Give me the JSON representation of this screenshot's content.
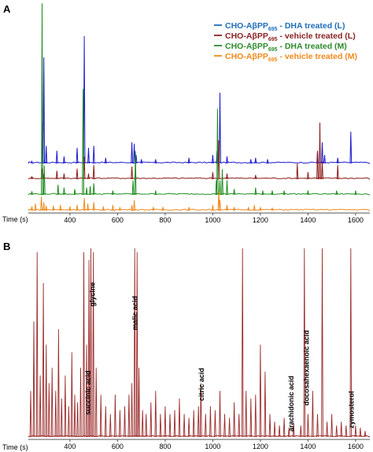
{
  "chart_data": [
    {
      "type": "line",
      "panel_label": "A",
      "xlabel": "Time (s)",
      "xlim": [
        225,
        1660
      ],
      "xticks": [
        400,
        600,
        800,
        1000,
        1200,
        1400,
        1600
      ],
      "legend_position": "top-right",
      "legend": [
        {
          "prefix": "CHO-AβPP",
          "subscript": "695",
          "suffix": " - DHA treated (L)",
          "color": "#1f6fb8"
        },
        {
          "prefix": "CHO-AβPP",
          "subscript": "695",
          "suffix": " - vehicle treated (L)",
          "color": "#8b2323"
        },
        {
          "prefix": "CHO-AβPP",
          "subscript": "695",
          "suffix": " - DHA treated (M)",
          "color": "#2e8b2e"
        },
        {
          "prefix": "CHO-AβPP",
          "subscript": "695",
          "suffix": " - vehicle treated (M)",
          "color": "#f08a1c"
        }
      ],
      "series": [
        {
          "color": "#1a1acc",
          "peaks": [
            [
              240,
              3
            ],
            [
              285,
              58
            ],
            [
              290,
              150
            ],
            [
              300,
              25
            ],
            [
              345,
              18
            ],
            [
              375,
              10
            ],
            [
              430,
              22
            ],
            [
              460,
              180
            ],
            [
              478,
              22
            ],
            [
              500,
              25
            ],
            [
              550,
              8
            ],
            [
              660,
              30
            ],
            [
              670,
              28
            ],
            [
              678,
              12
            ],
            [
              700,
              6
            ],
            [
              760,
              6
            ],
            [
              900,
              8
            ],
            [
              1000,
              12
            ],
            [
              1018,
              18
            ],
            [
              1030,
              100
            ],
            [
              1060,
              10
            ],
            [
              1160,
              6
            ],
            [
              1180,
              8
            ],
            [
              1230,
              6
            ],
            [
              1440,
              18
            ],
            [
              1460,
              30
            ],
            [
              1470,
              12
            ],
            [
              1525,
              8
            ],
            [
              1580,
              45
            ]
          ]
        },
        {
          "color": "#8b1a1a",
          "peaks": [
            [
              240,
              4
            ],
            [
              283,
              15
            ],
            [
              290,
              8
            ],
            [
              345,
              12
            ],
            [
              375,
              8
            ],
            [
              430,
              15
            ],
            [
              460,
              32
            ],
            [
              478,
              8
            ],
            [
              500,
              20
            ],
            [
              660,
              18
            ],
            [
              675,
              10
            ],
            [
              1000,
              10
            ],
            [
              1025,
              55
            ],
            [
              1060,
              8
            ],
            [
              1180,
              6
            ],
            [
              1355,
              22
            ],
            [
              1400,
              10
            ],
            [
              1440,
              40
            ],
            [
              1450,
              80
            ],
            [
              1460,
              25
            ],
            [
              1525,
              20
            ]
          ]
        },
        {
          "color": "#1e8c1e",
          "peaks": [
            [
              240,
              5
            ],
            [
              283,
              262
            ],
            [
              292,
              40
            ],
            [
              350,
              14
            ],
            [
              375,
              10
            ],
            [
              420,
              8
            ],
            [
              455,
              145
            ],
            [
              470,
              10
            ],
            [
              485,
              12
            ],
            [
              500,
              16
            ],
            [
              580,
              6
            ],
            [
              665,
              20
            ],
            [
              675,
              60
            ],
            [
              760,
              6
            ],
            [
              1015,
              20
            ],
            [
              1020,
              118
            ],
            [
              1030,
              20
            ],
            [
              1040,
              35
            ],
            [
              1060,
              20
            ],
            [
              1090,
              8
            ],
            [
              1180,
              10
            ],
            [
              1210,
              6
            ],
            [
              1250,
              6
            ],
            [
              1300,
              6
            ],
            [
              1400,
              6
            ],
            [
              1520,
              6
            ],
            [
              1600,
              6
            ]
          ]
        },
        {
          "color": "#f08a1c",
          "peaks": [
            [
              240,
              6
            ],
            [
              255,
              10
            ],
            [
              280,
              20
            ],
            [
              290,
              12
            ],
            [
              300,
              7
            ],
            [
              330,
              7
            ],
            [
              360,
              8
            ],
            [
              400,
              6
            ],
            [
              430,
              8
            ],
            [
              460,
              18
            ],
            [
              475,
              10
            ],
            [
              500,
              12
            ],
            [
              540,
              6
            ],
            [
              580,
              8
            ],
            [
              610,
              5
            ],
            [
              660,
              8
            ],
            [
              670,
              15
            ],
            [
              750,
              5
            ],
            [
              790,
              5
            ],
            [
              900,
              5
            ],
            [
              1000,
              8
            ],
            [
              1025,
              28
            ],
            [
              1030,
              15
            ],
            [
              1060,
              8
            ],
            [
              1090,
              5
            ],
            [
              1150,
              5
            ],
            [
              1175,
              8
            ],
            [
              1200,
              5
            ],
            [
              1250,
              4
            ]
          ]
        }
      ]
    },
    {
      "type": "line",
      "panel_label": "B",
      "xlabel": "Time (s)",
      "xlim": [
        225,
        1660
      ],
      "xticks": [
        400,
        600,
        800,
        1000,
        1200,
        1400,
        1600
      ],
      "series": [
        {
          "color": "#9b2a2a",
          "peaks": [
            [
              235,
              60
            ],
            [
              248,
              150
            ],
            [
              262,
              240
            ],
            [
              275,
              80
            ],
            [
              288,
              200
            ],
            [
              300,
              120
            ],
            [
              312,
              70
            ],
            [
              325,
              90
            ],
            [
              340,
              60
            ],
            [
              352,
              140
            ],
            [
              365,
              50
            ],
            [
              380,
              80
            ],
            [
              395,
              40
            ],
            [
              408,
              110
            ],
            [
              420,
              55
            ],
            [
              432,
              45
            ],
            [
              445,
              90
            ],
            [
              458,
              240
            ],
            [
              470,
              120
            ],
            [
              480,
              230
            ],
            [
              488,
              245
            ],
            [
              498,
              240
            ],
            [
              510,
              90
            ],
            [
              530,
              55
            ],
            [
              550,
              40
            ],
            [
              570,
              30
            ],
            [
              590,
              55
            ],
            [
              610,
              35
            ],
            [
              630,
              40
            ],
            [
              648,
              55
            ],
            [
              660,
              70
            ],
            [
              672,
              245
            ],
            [
              682,
              240
            ],
            [
              690,
              90
            ],
            [
              705,
              35
            ],
            [
              720,
              30
            ],
            [
              740,
              45
            ],
            [
              760,
              60
            ],
            [
              780,
              30
            ],
            [
              800,
              40
            ],
            [
              820,
              30
            ],
            [
              840,
              35
            ],
            [
              860,
              50
            ],
            [
              880,
              30
            ],
            [
              900,
              25
            ],
            [
              920,
              35
            ],
            [
              940,
              40
            ],
            [
              950,
              70
            ],
            [
              970,
              30
            ],
            [
              990,
              40
            ],
            [
              1010,
              35
            ],
            [
              1030,
              60
            ],
            [
              1050,
              30
            ],
            [
              1070,
              25
            ],
            [
              1090,
              45
            ],
            [
              1110,
              30
            ],
            [
              1125,
              245
            ],
            [
              1140,
              60
            ],
            [
              1160,
              50
            ],
            [
              1180,
              55
            ],
            [
              1200,
              120
            ],
            [
              1220,
              85
            ],
            [
              1240,
              30
            ],
            [
              1260,
              20
            ],
            [
              1280,
              15
            ],
            [
              1300,
              25
            ],
            [
              1320,
              12
            ],
            [
              1340,
              18
            ],
            [
              1370,
              15
            ],
            [
              1385,
              245
            ],
            [
              1400,
              30
            ],
            [
              1420,
              60
            ],
            [
              1440,
              30
            ],
            [
              1460,
              245
            ],
            [
              1480,
              20
            ],
            [
              1500,
              30
            ],
            [
              1520,
              15
            ],
            [
              1540,
              20
            ],
            [
              1560,
              15
            ],
            [
              1580,
              245
            ],
            [
              1600,
              15
            ],
            [
              1620,
              12
            ],
            [
              1640,
              8
            ]
          ]
        }
      ],
      "annotations": [
        {
          "time": 505,
          "text": "glycine"
        },
        {
          "time": 683,
          "text": "malic acid"
        },
        {
          "time": 487,
          "text": "succinic acid"
        },
        {
          "time": 962,
          "text": "citric acid"
        },
        {
          "time": 1339,
          "text": "arachidonic acid"
        },
        {
          "time": 1404,
          "text": "docosahexaenoic acid"
        },
        {
          "time": 1592,
          "text": "zymosterol"
        }
      ]
    }
  ]
}
